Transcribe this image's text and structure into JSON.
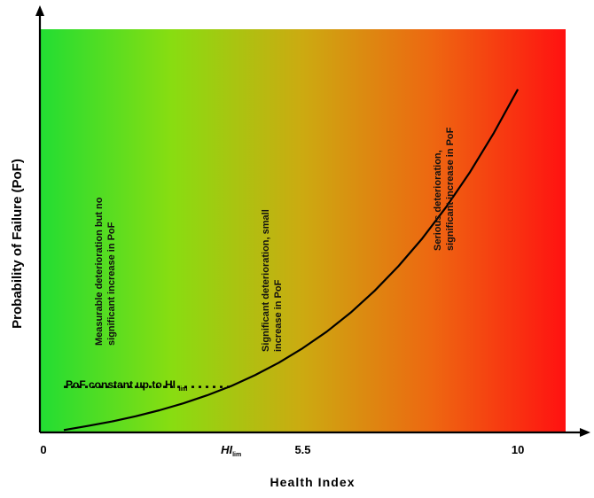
{
  "chart_data": {
    "type": "line",
    "title": "",
    "xlabel": "Health Index",
    "ylabel": "Probability of Failure (PoF)",
    "xlim": [
      0,
      11
    ],
    "ylim": [
      0,
      1
    ],
    "x_ticks": [
      {
        "value": 0,
        "label": "0"
      },
      {
        "value": 4,
        "label": "HI",
        "subscript": "lim"
      },
      {
        "value": 5.5,
        "label": "5.5"
      },
      {
        "value": 10,
        "label": "10"
      }
    ],
    "background_gradient": [
      "#22dd33",
      "#88dd11",
      "#ccaa11",
      "#ee6611",
      "#ff1111"
    ],
    "series": [
      {
        "color": "#000000",
        "style": "solid",
        "x": [
          0.5,
          1,
          1.5,
          2,
          2.5,
          3,
          3.5,
          4,
          4.5,
          5,
          5.5,
          6,
          6.5,
          7,
          7.5,
          8,
          8.5,
          9,
          9.5,
          10
        ],
        "y": [
          0.006,
          0.016,
          0.027,
          0.04,
          0.055,
          0.072,
          0.092,
          0.115,
          0.142,
          0.173,
          0.209,
          0.25,
          0.297,
          0.351,
          0.412,
          0.481,
          0.559,
          0.646,
          0.743,
          0.851
        ]
      },
      {
        "color": "#000000",
        "style": "dotted",
        "x": [
          0.5,
          4
        ],
        "y": [
          0.113,
          0.113
        ]
      }
    ],
    "annotations": [
      {
        "text": "PoF constant up to HI",
        "subscript": "lim"
      },
      {
        "lines": [
          "Measurable deterioration but no",
          "significant increase in PoF"
        ]
      },
      {
        "lines": [
          "Significant deterioration, small",
          "increase in PoF"
        ]
      },
      {
        "lines": [
          "Serious deterioration,",
          "significant increase in PoF"
        ]
      }
    ]
  }
}
